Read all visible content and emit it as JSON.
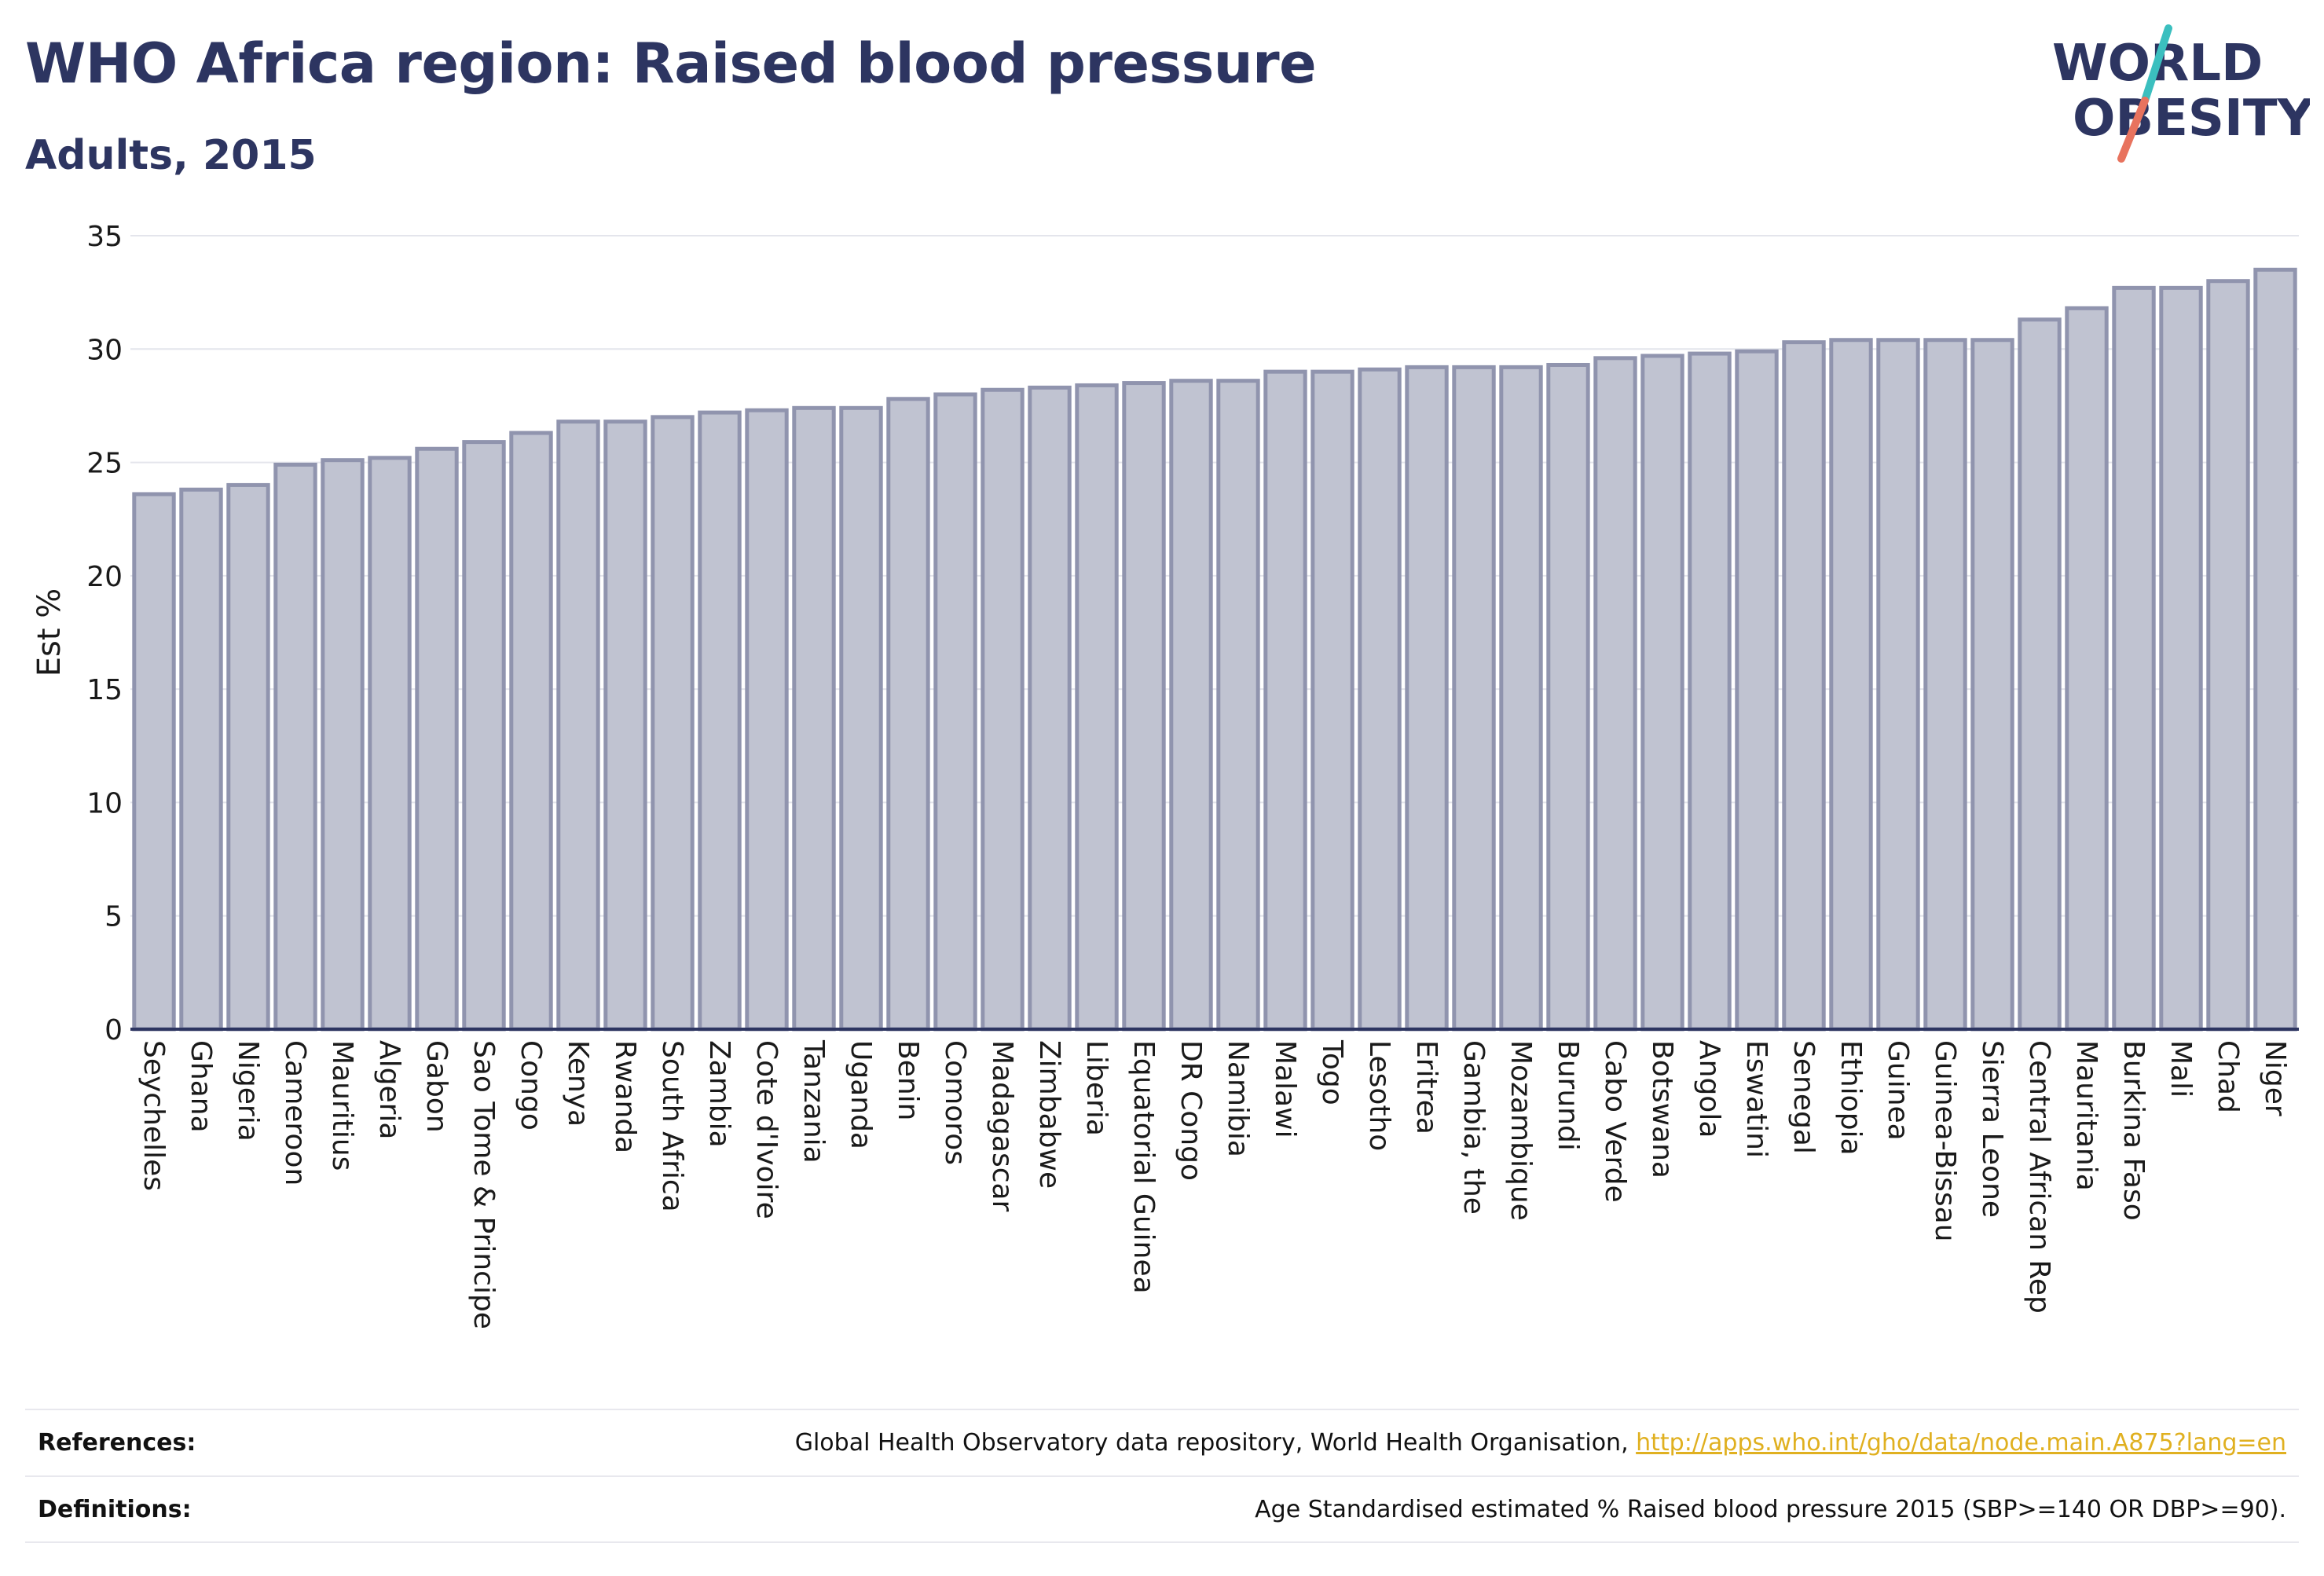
{
  "header": {
    "title": "WHO Africa region: Raised blood pressure",
    "subtitle": "Adults, 2015"
  },
  "logo": {
    "line1": "WORLD",
    "line2": "OBESITY"
  },
  "colors": {
    "bar_fill": "#c0c3d1",
    "bar_stroke": "#9094ae",
    "text_dark": "#2d3561",
    "link": "#e0b020",
    "logo_teal": "#3bbfbf",
    "logo_coral": "#e8735e"
  },
  "chart_data": {
    "type": "bar",
    "title": "WHO Africa region: Raised blood pressure",
    "subtitle": "Adults, 2015",
    "xlabel": "",
    "ylabel": "Est %",
    "ylim": [
      0,
      35
    ],
    "yticks": [
      0,
      5,
      10,
      15,
      20,
      25,
      30,
      35
    ],
    "grid": true,
    "categories": [
      "Seychelles",
      "Ghana",
      "Nigeria",
      "Cameroon",
      "Mauritius",
      "Algeria",
      "Gabon",
      "Sao Tome & Principe",
      "Congo",
      "Kenya",
      "Rwanda",
      "South Africa",
      "Zambia",
      "Cote d'Ivoire",
      "Tanzania",
      "Uganda",
      "Benin",
      "Comoros",
      "Madagascar",
      "Zimbabwe",
      "Liberia",
      "Equatorial Guinea",
      "DR Congo",
      "Namibia",
      "Malawi",
      "Togo",
      "Lesotho",
      "Eritrea",
      "Gambia, the",
      "Mozambique",
      "Burundi",
      "Cabo Verde",
      "Botswana",
      "Angola",
      "Eswatini",
      "Senegal",
      "Ethiopia",
      "Guinea",
      "Guinea-Bissau",
      "Sierra Leone",
      "Central African Rep",
      "Mauritania",
      "Burkina Faso",
      "Mali",
      "Chad",
      "Niger"
    ],
    "values": [
      23.6,
      23.8,
      24.0,
      24.9,
      25.1,
      25.2,
      25.6,
      25.9,
      26.3,
      26.8,
      26.8,
      27.0,
      27.2,
      27.3,
      27.4,
      27.4,
      27.8,
      28.0,
      28.2,
      28.3,
      28.4,
      28.5,
      28.6,
      28.6,
      29.0,
      29.0,
      29.1,
      29.2,
      29.2,
      29.2,
      29.3,
      29.6,
      29.7,
      29.8,
      29.9,
      30.3,
      30.4,
      30.4,
      30.4,
      30.4,
      31.3,
      31.8,
      32.7,
      32.7,
      33.0,
      33.5
    ]
  },
  "footer": {
    "references_label": "References:",
    "references_text": "Global Health Observatory data repository, World Health Organisation, ",
    "references_link": "http://apps.who.int/gho/data/node.main.A875?lang=en",
    "definitions_label": "Definitions:",
    "definitions_text": "Age Standardised estimated % Raised blood pressure 2015 (SBP>=140 OR DBP>=90)."
  }
}
